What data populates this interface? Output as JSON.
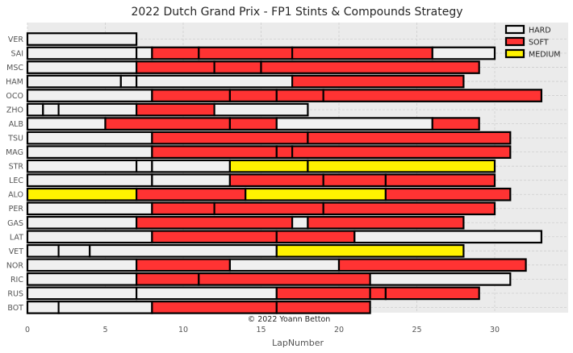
{
  "chart_data": {
    "type": "bar",
    "orientation": "horizontal-stacked",
    "title": "2022 Dutch Grand Prix - FP1 Stints & Compounds Strategy",
    "xlabel": "LapNumber",
    "ylabel": "",
    "xlim": [
      0,
      35
    ],
    "xticks": [
      0,
      5,
      10,
      15,
      20,
      25,
      30
    ],
    "grid": true,
    "legend_position": "top-right",
    "credit": "© 2022 Yoann Betton",
    "compounds": [
      {
        "name": "HARD",
        "color": "#f0f0f0"
      },
      {
        "name": "SOFT",
        "color": "#ff3333"
      },
      {
        "name": "MEDIUM",
        "color": "#fff200"
      }
    ],
    "drivers": [
      {
        "name": "VER",
        "stints": [
          {
            "compound": "HARD",
            "start": 0,
            "end": 7
          }
        ]
      },
      {
        "name": "SAI",
        "stints": [
          {
            "compound": "HARD",
            "start": 0,
            "end": 7
          },
          {
            "compound": "HARD",
            "start": 7,
            "end": 8
          },
          {
            "compound": "SOFT",
            "start": 8,
            "end": 11
          },
          {
            "compound": "SOFT",
            "start": 11,
            "end": 17
          },
          {
            "compound": "SOFT",
            "start": 17,
            "end": 26
          },
          {
            "compound": "HARD",
            "start": 26,
            "end": 30
          }
        ]
      },
      {
        "name": "MSC",
        "stints": [
          {
            "compound": "HARD",
            "start": 0,
            "end": 7
          },
          {
            "compound": "SOFT",
            "start": 7,
            "end": 12
          },
          {
            "compound": "SOFT",
            "start": 12,
            "end": 15
          },
          {
            "compound": "SOFT",
            "start": 15,
            "end": 29
          }
        ]
      },
      {
        "name": "HAM",
        "stints": [
          {
            "compound": "HARD",
            "start": 0,
            "end": 6
          },
          {
            "compound": "HARD",
            "start": 6,
            "end": 7
          },
          {
            "compound": "HARD",
            "start": 7,
            "end": 17
          },
          {
            "compound": "SOFT",
            "start": 17,
            "end": 28
          }
        ]
      },
      {
        "name": "OCO",
        "stints": [
          {
            "compound": "HARD",
            "start": 0,
            "end": 8
          },
          {
            "compound": "SOFT",
            "start": 8,
            "end": 13
          },
          {
            "compound": "SOFT",
            "start": 13,
            "end": 16
          },
          {
            "compound": "SOFT",
            "start": 16,
            "end": 19
          },
          {
            "compound": "SOFT",
            "start": 19,
            "end": 33
          }
        ]
      },
      {
        "name": "ZHO",
        "stints": [
          {
            "compound": "HARD",
            "start": 0,
            "end": 1
          },
          {
            "compound": "HARD",
            "start": 1,
            "end": 2
          },
          {
            "compound": "HARD",
            "start": 2,
            "end": 7
          },
          {
            "compound": "SOFT",
            "start": 7,
            "end": 12
          },
          {
            "compound": "HARD",
            "start": 12,
            "end": 18
          }
        ]
      },
      {
        "name": "ALB",
        "stints": [
          {
            "compound": "HARD",
            "start": 0,
            "end": 5
          },
          {
            "compound": "SOFT",
            "start": 5,
            "end": 13
          },
          {
            "compound": "SOFT",
            "start": 13,
            "end": 16
          },
          {
            "compound": "HARD",
            "start": 16,
            "end": 26
          },
          {
            "compound": "SOFT",
            "start": 26,
            "end": 29
          }
        ]
      },
      {
        "name": "TSU",
        "stints": [
          {
            "compound": "HARD",
            "start": 0,
            "end": 8
          },
          {
            "compound": "SOFT",
            "start": 8,
            "end": 18
          },
          {
            "compound": "SOFT",
            "start": 18,
            "end": 31
          }
        ]
      },
      {
        "name": "MAG",
        "stints": [
          {
            "compound": "HARD",
            "start": 0,
            "end": 8
          },
          {
            "compound": "SOFT",
            "start": 8,
            "end": 16
          },
          {
            "compound": "SOFT",
            "start": 16,
            "end": 17
          },
          {
            "compound": "SOFT",
            "start": 17,
            "end": 31
          }
        ]
      },
      {
        "name": "STR",
        "stints": [
          {
            "compound": "HARD",
            "start": 0,
            "end": 7
          },
          {
            "compound": "HARD",
            "start": 7,
            "end": 8
          },
          {
            "compound": "HARD",
            "start": 8,
            "end": 13
          },
          {
            "compound": "MEDIUM",
            "start": 13,
            "end": 18
          },
          {
            "compound": "MEDIUM",
            "start": 18,
            "end": 30
          }
        ]
      },
      {
        "name": "LEC",
        "stints": [
          {
            "compound": "HARD",
            "start": 0,
            "end": 8
          },
          {
            "compound": "HARD",
            "start": 8,
            "end": 13
          },
          {
            "compound": "SOFT",
            "start": 13,
            "end": 19
          },
          {
            "compound": "SOFT",
            "start": 19,
            "end": 23
          },
          {
            "compound": "SOFT",
            "start": 23,
            "end": 30
          }
        ]
      },
      {
        "name": "ALO",
        "stints": [
          {
            "compound": "MEDIUM",
            "start": 0,
            "end": 7
          },
          {
            "compound": "SOFT",
            "start": 7,
            "end": 14
          },
          {
            "compound": "MEDIUM",
            "start": 14,
            "end": 23
          },
          {
            "compound": "SOFT",
            "start": 23,
            "end": 31
          }
        ]
      },
      {
        "name": "PER",
        "stints": [
          {
            "compound": "HARD",
            "start": 0,
            "end": 8
          },
          {
            "compound": "SOFT",
            "start": 8,
            "end": 12
          },
          {
            "compound": "SOFT",
            "start": 12,
            "end": 19
          },
          {
            "compound": "SOFT",
            "start": 19,
            "end": 30
          }
        ]
      },
      {
        "name": "GAS",
        "stints": [
          {
            "compound": "HARD",
            "start": 0,
            "end": 7
          },
          {
            "compound": "SOFT",
            "start": 7,
            "end": 17
          },
          {
            "compound": "HARD",
            "start": 17,
            "end": 18
          },
          {
            "compound": "SOFT",
            "start": 18,
            "end": 28
          }
        ]
      },
      {
        "name": "LAT",
        "stints": [
          {
            "compound": "HARD",
            "start": 0,
            "end": 8
          },
          {
            "compound": "SOFT",
            "start": 8,
            "end": 16
          },
          {
            "compound": "SOFT",
            "start": 16,
            "end": 21
          },
          {
            "compound": "HARD",
            "start": 21,
            "end": 33
          }
        ]
      },
      {
        "name": "VET",
        "stints": [
          {
            "compound": "HARD",
            "start": 0,
            "end": 2
          },
          {
            "compound": "HARD",
            "start": 2,
            "end": 4
          },
          {
            "compound": "HARD",
            "start": 4,
            "end": 16
          },
          {
            "compound": "MEDIUM",
            "start": 16,
            "end": 28
          }
        ]
      },
      {
        "name": "NOR",
        "stints": [
          {
            "compound": "HARD",
            "start": 0,
            "end": 7
          },
          {
            "compound": "SOFT",
            "start": 7,
            "end": 13
          },
          {
            "compound": "HARD",
            "start": 13,
            "end": 20
          },
          {
            "compound": "SOFT",
            "start": 20,
            "end": 32
          }
        ]
      },
      {
        "name": "RIC",
        "stints": [
          {
            "compound": "HARD",
            "start": 0,
            "end": 7
          },
          {
            "compound": "SOFT",
            "start": 7,
            "end": 11
          },
          {
            "compound": "SOFT",
            "start": 11,
            "end": 22
          },
          {
            "compound": "HARD",
            "start": 22,
            "end": 31
          }
        ]
      },
      {
        "name": "RUS",
        "stints": [
          {
            "compound": "HARD",
            "start": 0,
            "end": 7
          },
          {
            "compound": "HARD",
            "start": 7,
            "end": 16
          },
          {
            "compound": "SOFT",
            "start": 16,
            "end": 22
          },
          {
            "compound": "SOFT",
            "start": 22,
            "end": 23
          },
          {
            "compound": "SOFT",
            "start": 23,
            "end": 29
          }
        ]
      },
      {
        "name": "BOT",
        "stints": [
          {
            "compound": "HARD",
            "start": 0,
            "end": 2
          },
          {
            "compound": "HARD",
            "start": 2,
            "end": 8
          },
          {
            "compound": "SOFT",
            "start": 8,
            "end": 16
          },
          {
            "compound": "SOFT",
            "start": 16,
            "end": 22
          }
        ]
      }
    ]
  }
}
